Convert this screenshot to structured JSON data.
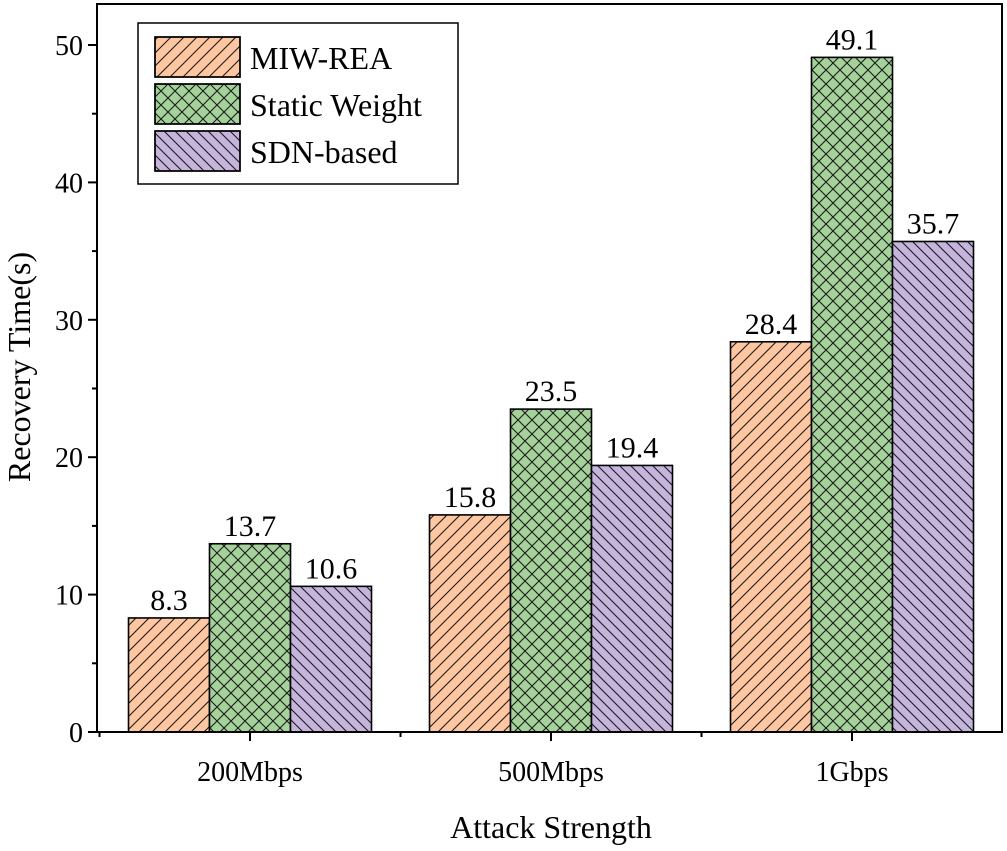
{
  "chart_data": {
    "type": "bar",
    "title": "",
    "xlabel": "Attack Strength",
    "ylabel": "Recovery Time(s)",
    "categories": [
      "200Mbps",
      "500Mbps",
      "1Gbps"
    ],
    "ylim": [
      0,
      52
    ],
    "yticks": [
      0,
      10,
      20,
      30,
      40,
      50
    ],
    "grid": false,
    "legend_position": "top-left",
    "series": [
      {
        "name": "MIW-REA",
        "values": [
          8.3,
          15.8,
          28.4
        ],
        "labels": [
          "8.3",
          "15.8",
          "28.4"
        ],
        "color": "#FFC7A1",
        "hatch": "diagonal-forward"
      },
      {
        "name": "Static Weight",
        "values": [
          13.7,
          23.5,
          49.1
        ],
        "labels": [
          "13.7",
          "23.5",
          "49.1"
        ],
        "color": "#A4D29A",
        "hatch": "crosshatch"
      },
      {
        "name": "SDN-based",
        "values": [
          10.6,
          19.4,
          35.7
        ],
        "labels": [
          "10.6",
          "19.4",
          "35.7"
        ],
        "color": "#C5B5DD",
        "hatch": "diagonal-back"
      }
    ]
  }
}
